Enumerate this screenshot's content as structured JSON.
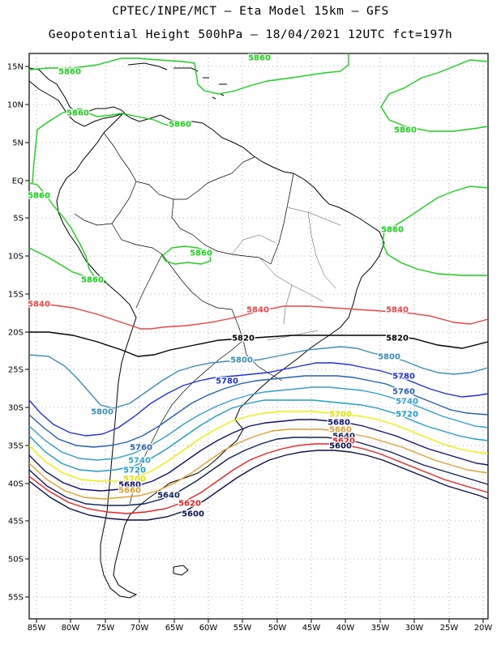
{
  "header": {
    "line1": "CPTEC/INPE/MCT –  Eta Model 15km – GFS",
    "line2": "Geopotential Height 500hPa – 18/04/2021 12UTC fct=197h"
  },
  "axes": {
    "lat_labels": [
      "15N",
      "10N",
      "5N",
      "EQ",
      "5S",
      "10S",
      "15S",
      "20S",
      "25S",
      "30S",
      "35S",
      "40S",
      "45S",
      "50S",
      "55S"
    ],
    "lon_labels": [
      "85W",
      "80W",
      "75W",
      "70W",
      "65W",
      "60W",
      "55W",
      "50W",
      "45W",
      "40W",
      "35W",
      "30W",
      "25W",
      "20W"
    ]
  },
  "colors": {
    "c5860": "#18d418",
    "c5840": "#f04444",
    "c5820": "#000000",
    "c5800": "#3a8fb8",
    "c5780": "#2030e0",
    "c5760": "#2060b8",
    "c5740": "#30a0d0",
    "c5720": "#1aa0c8",
    "c5700": "#f0f000",
    "c5680": "#101070",
    "c5660": "#e0a030",
    "c5640": "#102060",
    "c5620": "#f02020",
    "c5600": "#0a1050"
  },
  "contour_labels": [
    {
      "text": "5860",
      "color": "#18d418"
    },
    {
      "text": "5860",
      "color": "#18d418"
    },
    {
      "text": "5860",
      "color": "#18d418"
    },
    {
      "text": "5860",
      "color": "#18d418"
    },
    {
      "text": "5860",
      "color": "#18d418"
    },
    {
      "text": "5860",
      "color": "#18d418"
    },
    {
      "text": "5860",
      "color": "#18d418"
    },
    {
      "text": "5860",
      "color": "#18d418"
    },
    {
      "text": "5860",
      "color": "#18d418"
    },
    {
      "text": "5840",
      "color": "#f04444"
    },
    {
      "text": "5840",
      "color": "#f04444"
    },
    {
      "text": "5840",
      "color": "#f04444"
    },
    {
      "text": "5820",
      "color": "#000000"
    },
    {
      "text": "5820",
      "color": "#000000"
    },
    {
      "text": "5800",
      "color": "#3a8fb8"
    },
    {
      "text": "5800",
      "color": "#3a8fb8"
    },
    {
      "text": "5800",
      "color": "#3a8fb8"
    },
    {
      "text": "5780",
      "color": "#2030e0"
    },
    {
      "text": "5780",
      "color": "#2030e0"
    },
    {
      "text": "5760",
      "color": "#2060b8"
    },
    {
      "text": "5760",
      "color": "#2060b8"
    },
    {
      "text": "5740",
      "color": "#30a0d0"
    },
    {
      "text": "5740",
      "color": "#30a0d0"
    },
    {
      "text": "5720",
      "color": "#1aa0c8"
    },
    {
      "text": "5720",
      "color": "#1aa0c8"
    },
    {
      "text": "5700",
      "color": "#e0e000"
    },
    {
      "text": "5700",
      "color": "#e0e000"
    },
    {
      "text": "5680",
      "color": "#101070"
    },
    {
      "text": "5680",
      "color": "#101070"
    },
    {
      "text": "5660",
      "color": "#e0a030"
    },
    {
      "text": "5660",
      "color": "#e0a030"
    },
    {
      "text": "5640",
      "color": "#102060"
    },
    {
      "text": "5640",
      "color": "#102060"
    },
    {
      "text": "5620",
      "color": "#f02020"
    },
    {
      "text": "5620",
      "color": "#f02020"
    },
    {
      "text": "5600",
      "color": "#0a1050"
    },
    {
      "text": "5600",
      "color": "#0a1050"
    }
  ]
}
